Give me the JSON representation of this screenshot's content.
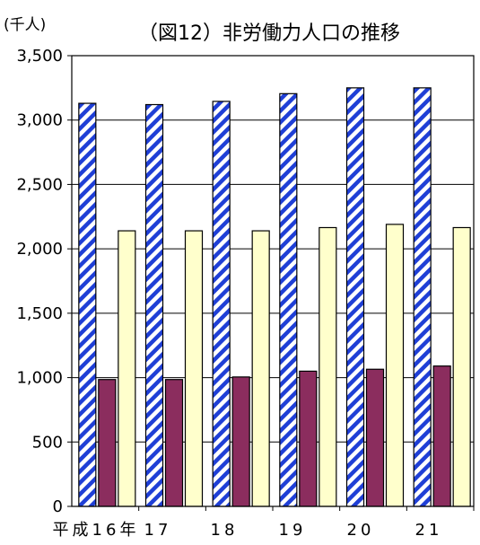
{
  "chart_data": {
    "type": "bar",
    "title": "（図12）非労働力人口の推移",
    "unit_label": "(千人)",
    "categories": [
      "平成16年",
      "17",
      "18",
      "19",
      "20",
      "21"
    ],
    "series": [
      {
        "values": [
          3130,
          3120,
          3145,
          3205,
          3250,
          3250
        ],
        "color": "#1f3fd6",
        "pattern": "diagonal-stripes"
      },
      {
        "values": [
          985,
          985,
          1005,
          1050,
          1065,
          1090
        ],
        "color": "#8b2d5e"
      },
      {
        "values": [
          2140,
          2140,
          2140,
          2165,
          2190,
          2165
        ],
        "color": "#ffffcc"
      }
    ],
    "ylim": [
      0,
      3500
    ],
    "yticks": [
      "0",
      "500",
      "1,000",
      "1,500",
      "2,000",
      "2,500",
      "3,000",
      "3,500"
    ],
    "grid": true,
    "legend": "none"
  }
}
